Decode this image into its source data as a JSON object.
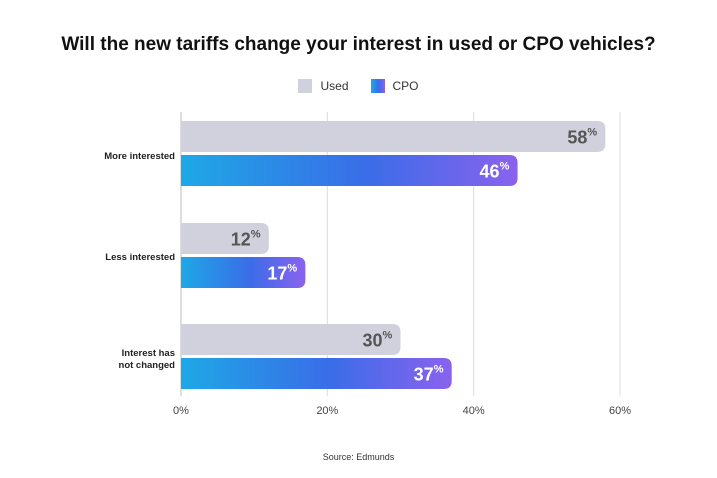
{
  "chart_data": {
    "type": "bar",
    "orientation": "horizontal",
    "title": "Will the new tariffs change your interest in used or CPO vehicles?",
    "categories": [
      [
        "More interested"
      ],
      [
        "Less interested"
      ],
      [
        "Interest has",
        "not changed"
      ]
    ],
    "series": [
      {
        "name": "Used",
        "values": [
          58,
          12,
          30
        ],
        "color": "#d1d1dd",
        "label_color": "#555555"
      },
      {
        "name": "CPO",
        "values": [
          46,
          17,
          37
        ],
        "gradient": [
          "#1ea8e6",
          "#3a6de8",
          "#8a62ee"
        ],
        "label_color": "#ffffff"
      }
    ],
    "x_ticks": [
      "0%",
      "20%",
      "40%",
      "60%"
    ],
    "x_tick_values": [
      0,
      20,
      40,
      60
    ],
    "xlim": [
      0,
      60
    ],
    "value_suffix": "%",
    "grid": true,
    "legend_position": "top-center",
    "source": "Source: Edmunds"
  }
}
